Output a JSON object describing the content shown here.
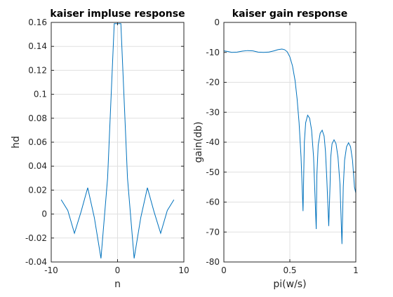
{
  "colors": {
    "line": "#0072bd",
    "axis": "#262626",
    "grid": "#e0e0e0",
    "background": "#ffffff"
  },
  "chart_data": [
    {
      "type": "line",
      "title": "kaiser impluse response",
      "xlabel": "n",
      "ylabel": "hd",
      "xlim": [
        -10,
        10
      ],
      "ylim": [
        -0.04,
        0.16
      ],
      "grid": true,
      "xticks": [
        -10,
        0,
        10
      ],
      "xtick_labels": [
        "-10",
        "0",
        "10"
      ],
      "yticks": [
        -0.04,
        -0.02,
        0,
        0.02,
        0.04,
        0.06,
        0.08,
        0.1,
        0.12,
        0.14,
        0.16
      ],
      "ytick_labels": [
        "-0.04",
        "-0.02",
        "0",
        "0.02",
        "0.04",
        "0.06",
        "0.08",
        "0.1",
        "0.12",
        "0.14",
        "0.16"
      ],
      "series": [
        {
          "color": "#0072bd",
          "x": [
            -8.5,
            -7.5,
            -6.5,
            -5.5,
            -4.5,
            -3.5,
            -2.5,
            -1.5,
            -0.5,
            0.5,
            1.5,
            2.5,
            3.5,
            4.5,
            5.5,
            6.5,
            7.5,
            8.5
          ],
          "y": [
            0.012,
            0.003,
            -0.016,
            0.002,
            0.022,
            -0.003,
            -0.037,
            0.03,
            0.159,
            0.159,
            0.03,
            -0.037,
            -0.003,
            0.022,
            0.002,
            -0.016,
            0.003,
            0.012
          ]
        }
      ]
    },
    {
      "type": "line",
      "title": "kaiser gain response",
      "xlabel": "pi(w/s)",
      "ylabel": "gain(db)",
      "xlim": [
        0,
        1
      ],
      "ylim": [
        -80,
        0
      ],
      "grid": true,
      "xticks": [
        0,
        0.5,
        1
      ],
      "xtick_labels": [
        "0",
        "0.5",
        "1"
      ],
      "yticks": [
        -80,
        -70,
        -60,
        -50,
        -40,
        -30,
        -20,
        -10,
        0
      ],
      "ytick_labels": [
        "-80",
        "-70",
        "-60",
        "-50",
        "-40",
        "-30",
        "-20",
        "-10",
        "0"
      ],
      "series": [
        {
          "color": "#0072bd",
          "x": [
            0,
            0.03,
            0.06,
            0.1,
            0.14,
            0.18,
            0.22,
            0.26,
            0.3,
            0.34,
            0.38,
            0.41,
            0.44,
            0.46,
            0.48,
            0.5,
            0.52,
            0.54,
            0.555,
            0.57,
            0.585,
            0.6,
            0.61,
            0.62,
            0.635,
            0.65,
            0.665,
            0.68,
            0.69,
            0.7,
            0.705,
            0.715,
            0.73,
            0.745,
            0.76,
            0.77,
            0.78,
            0.795,
            0.805,
            0.81,
            0.82,
            0.835,
            0.85,
            0.865,
            0.88,
            0.895,
            0.905,
            0.915,
            0.93,
            0.945,
            0.96,
            0.975,
            0.99,
            1.0
          ],
          "y": [
            -9.5,
            -9.7,
            -10,
            -9.9,
            -9.6,
            -9.4,
            -9.5,
            -9.9,
            -10,
            -9.9,
            -9.5,
            -9.1,
            -8.9,
            -9.1,
            -9.8,
            -11.5,
            -14.5,
            -19.5,
            -25.5,
            -33.5,
            -45,
            -63,
            -40,
            -33.5,
            -31,
            -32,
            -36,
            -45,
            -57,
            -69,
            -51,
            -41,
            -37,
            -36,
            -38,
            -43,
            -52,
            -68,
            -54,
            -45,
            -40.5,
            -39.2,
            -40.5,
            -45,
            -54,
            -74,
            -55,
            -46,
            -41.5,
            -40.2,
            -41.5,
            -46,
            -55,
            -57
          ]
        }
      ]
    }
  ]
}
